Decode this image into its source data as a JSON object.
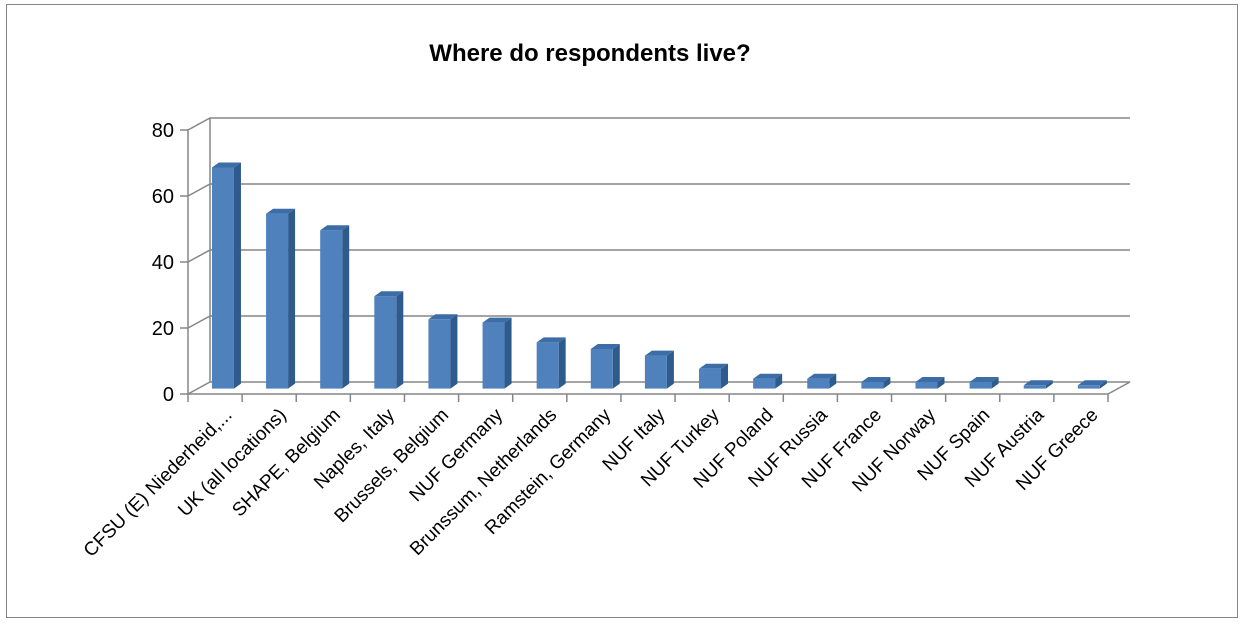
{
  "chart_data": {
    "type": "bar",
    "title": "Where do respondents live?",
    "xlabel": "",
    "ylabel": "",
    "ylim": [
      0,
      80
    ],
    "yticks": [
      0,
      20,
      40,
      60,
      80
    ],
    "grid": true,
    "legend": "none",
    "bar_color": "#4F81BD",
    "categories": [
      "CFSU (E) Niederheid,...",
      "UK (all locations)",
      "SHAPE, Belgium",
      "Naples, Italy",
      "Brussels, Belgium",
      "NUF Germany",
      "Brunssum, Netherlands",
      "Ramstein, Germany",
      "NUF Italy",
      "NUF Turkey",
      "NUF Poland",
      "NUF Russia",
      "NUF France",
      "NUF Norway",
      "NUF Spain",
      "NUF Austria",
      "NUF Greece"
    ],
    "values": [
      67,
      53,
      48,
      28,
      21,
      20,
      14,
      12,
      10,
      6,
      3,
      3,
      2,
      2,
      2,
      1,
      1
    ]
  }
}
